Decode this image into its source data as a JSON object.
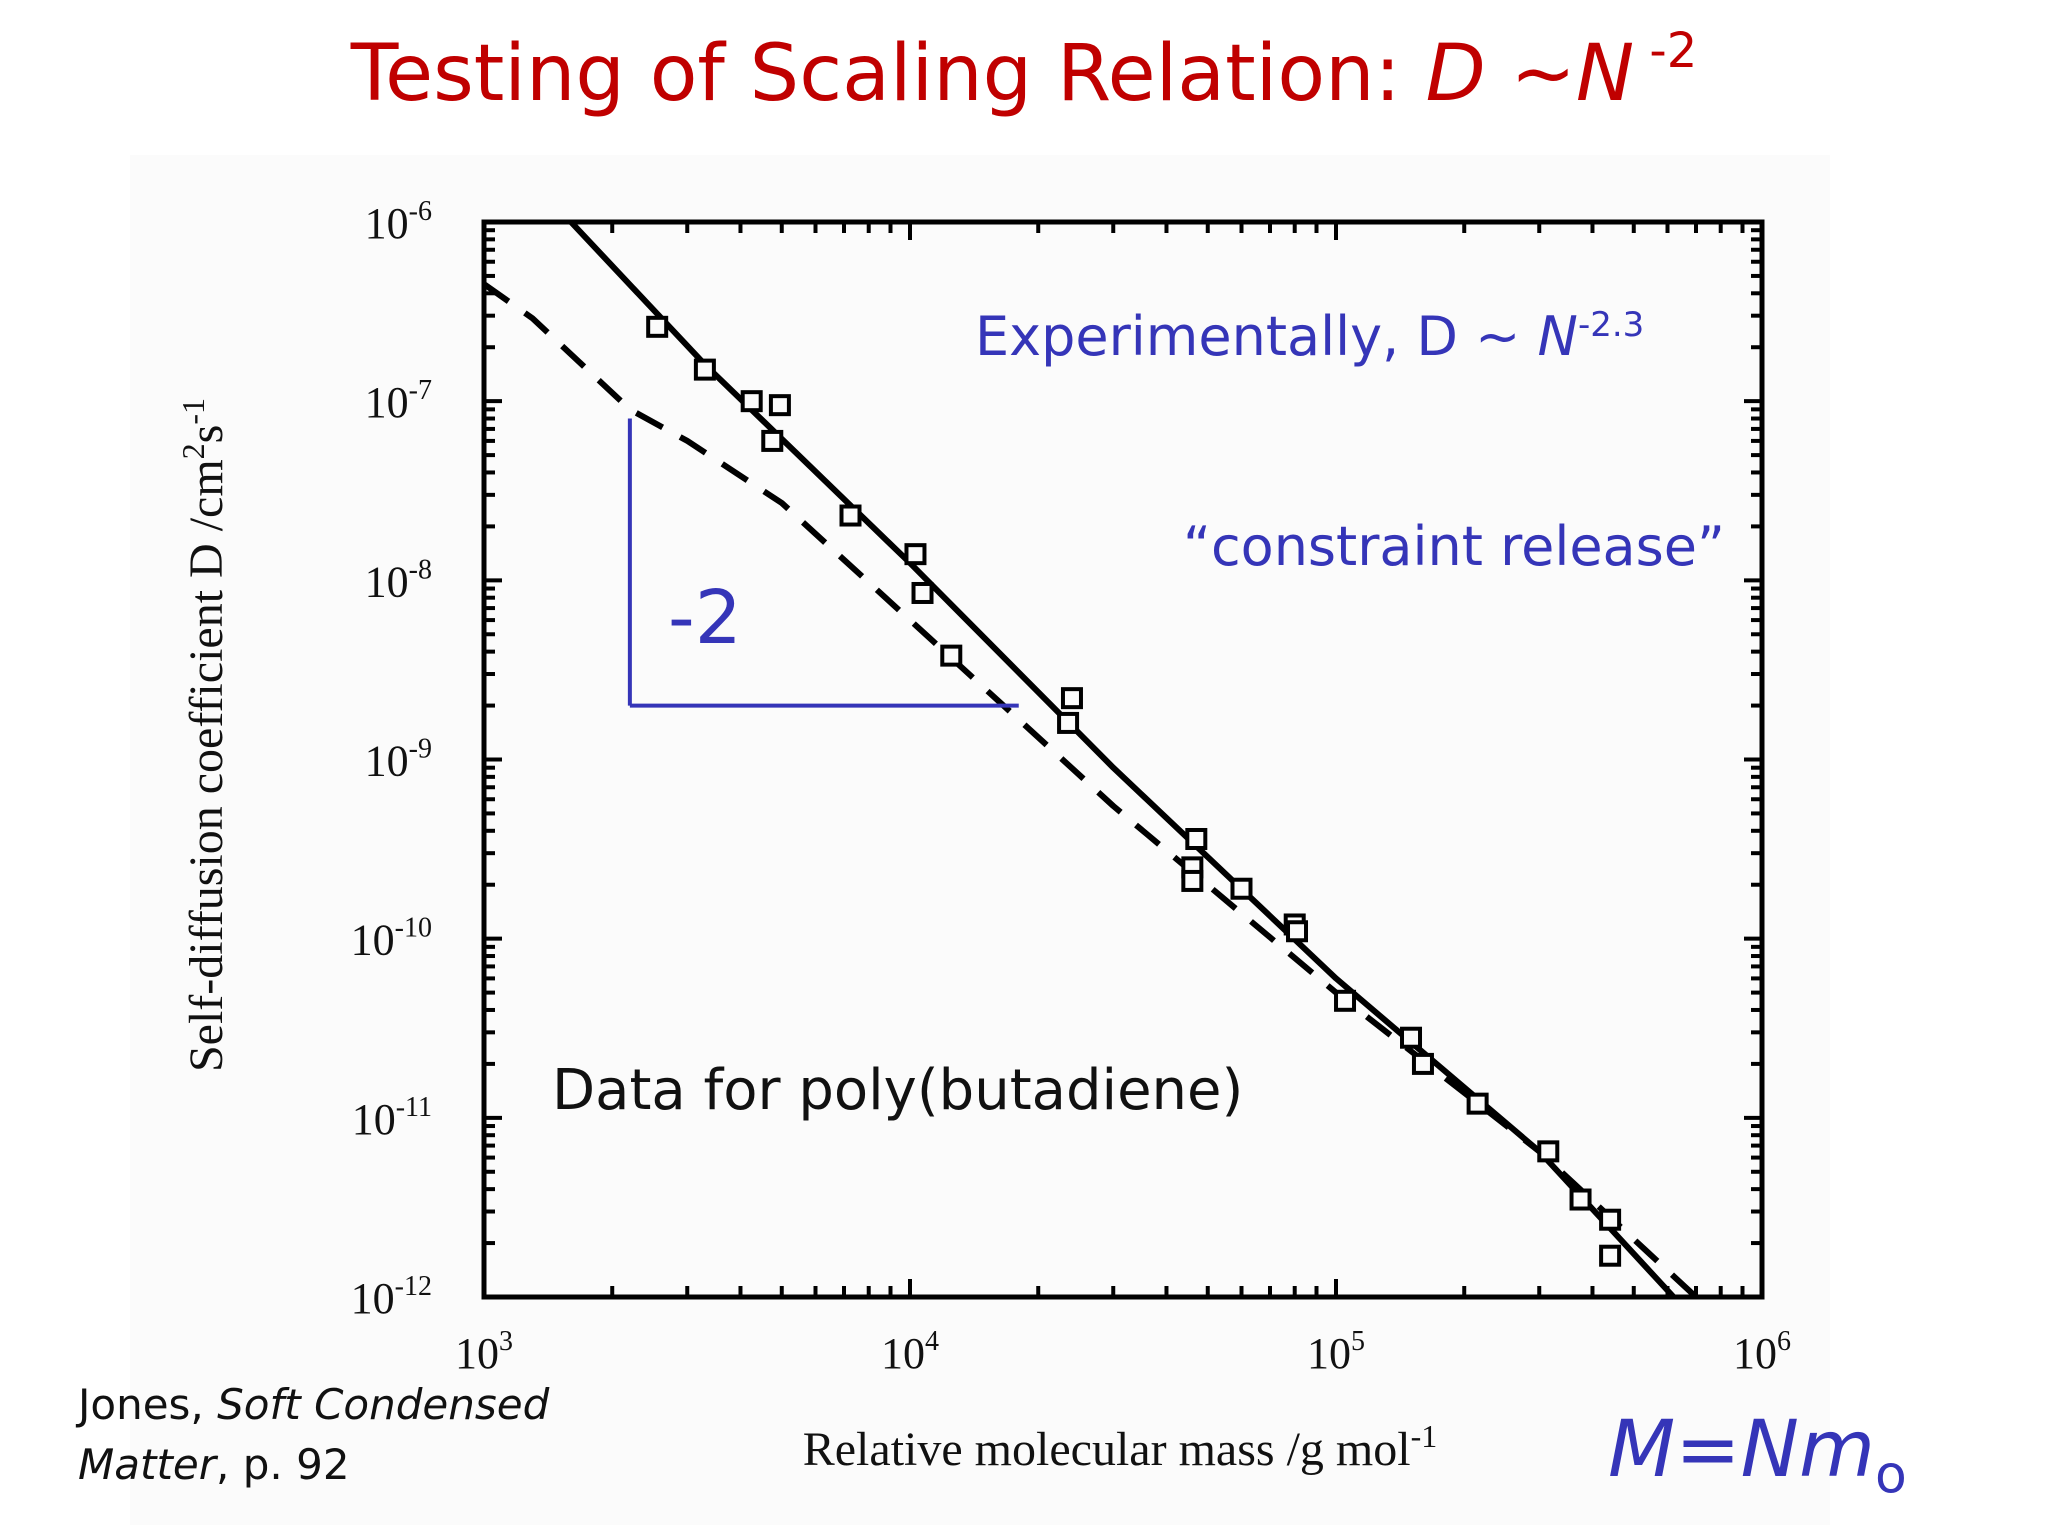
{
  "slide": {
    "title_prefix": "Testing of Scaling Relation: ",
    "title_D": "D",
    "title_tilde": " ~",
    "title_N": "N",
    "title_exp": " -2"
  },
  "annotations": {
    "experimental_prefix": "Experimentally, D ~ ",
    "experimental_N": "N",
    "experimental_exp": "-2.3",
    "constraint_release": "“constraint release”",
    "slope_label": "-2",
    "data_label": "Data for poly(butadiene)",
    "citation_author": "Jones, ",
    "citation_book": "Soft Condensed Matter",
    "citation_page": ", p. 92",
    "relation_main": "M=Nm",
    "relation_sub": "o",
    "accent_color": "#3535b8",
    "title_color": "#c00000"
  },
  "chart_data": {
    "type": "scatter",
    "xlabel": "Relative molecular mass /g mol",
    "xlabel_sup": "-1",
    "ylabel": "Self-diffusion coefficient D /cm",
    "ylabel_sup1": "2",
    "ylabel_mid": "s",
    "ylabel_sup2": "-1",
    "x_scale": "log",
    "y_scale": "log",
    "xlim": [
      1000,
      1000000
    ],
    "ylim": [
      1e-12,
      1e-06
    ],
    "x_ticks": [
      {
        "value": 1000,
        "base": "10",
        "exp": "3"
      },
      {
        "value": 10000,
        "base": "10",
        "exp": "4"
      },
      {
        "value": 100000,
        "base": "10",
        "exp": "5"
      },
      {
        "value": 1000000,
        "base": "10",
        "exp": "6"
      }
    ],
    "y_ticks": [
      {
        "value": 1e-06,
        "base": "10",
        "exp": "-6"
      },
      {
        "value": 1e-07,
        "base": "10",
        "exp": "-7"
      },
      {
        "value": 1e-08,
        "base": "10",
        "exp": "-8"
      },
      {
        "value": 1e-09,
        "base": "10",
        "exp": "-9"
      },
      {
        "value": 1e-10,
        "base": "10",
        "exp": "-10"
      },
      {
        "value": 1e-11,
        "base": "10",
        "exp": "-11"
      },
      {
        "value": 1e-12,
        "base": "10",
        "exp": "-12"
      }
    ],
    "series": [
      {
        "style": "markers-square",
        "points": [
          [
            2550,
            2.6e-07
          ],
          [
            3300,
            1.5e-07
          ],
          [
            4250,
            1e-07
          ],
          [
            4950,
            9.5e-08
          ],
          [
            4750,
            6e-08
          ],
          [
            7250,
            2.3e-08
          ],
          [
            10300,
            1.4e-08
          ],
          [
            10700,
            8.5e-09
          ],
          [
            12500,
            3.8e-09
          ],
          [
            24000,
            2.2e-09
          ],
          [
            23500,
            1.6e-09
          ],
          [
            47000,
            3.6e-10
          ],
          [
            46000,
            2.5e-10
          ],
          [
            46000,
            2.1e-10
          ],
          [
            60000,
            1.9e-10
          ],
          [
            80000,
            1.2e-10
          ],
          [
            81000,
            1.1e-10
          ],
          [
            105000,
            4.5e-11
          ],
          [
            150000,
            2.8e-11
          ],
          [
            160000,
            2e-11
          ],
          [
            215000,
            1.2e-11
          ],
          [
            315000,
            6.5e-12
          ],
          [
            375000,
            3.5e-12
          ],
          [
            440000,
            2.7e-12
          ],
          [
            440000,
            1.7e-12
          ]
        ]
      },
      {
        "style": "solid",
        "points": [
          [
            1600,
            1e-06
          ],
          [
            3300,
            1.6e-07
          ],
          [
            10000,
            1.25e-08
          ],
          [
            30000,
            9e-10
          ],
          [
            100000,
            6e-11
          ],
          [
            300000,
            6.5e-12
          ],
          [
            620000,
            1e-12
          ]
        ]
      },
      {
        "style": "dashed",
        "points": [
          [
            1000,
            4.5e-07
          ],
          [
            1300,
            2.9e-07
          ],
          [
            2200,
            9e-08
          ],
          [
            3000,
            6e-08
          ],
          [
            5000,
            2.7e-08
          ],
          [
            10000,
            6e-09
          ],
          [
            30000,
            5.5e-10
          ],
          [
            100000,
            5e-11
          ],
          [
            300000,
            6.5e-12
          ],
          [
            700000,
            1e-12
          ]
        ]
      }
    ],
    "slope_triangle": {
      "slope": -2,
      "vertical_from": [
        2200,
        8e-08
      ],
      "corner": [
        2200,
        2e-09
      ],
      "horizontal_to": [
        18000,
        2e-09
      ]
    }
  }
}
